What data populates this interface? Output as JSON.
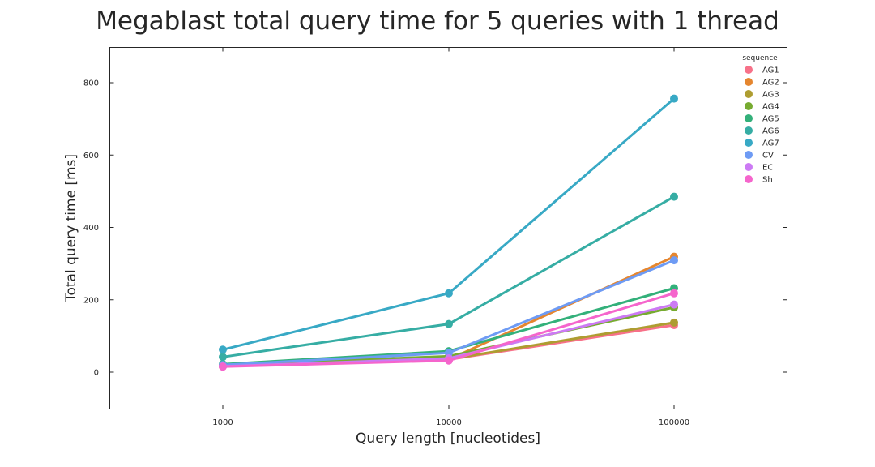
{
  "chart_data": {
    "type": "line",
    "title": "Megablast total query time for 5 queries with 1 thread",
    "xlabel": "Query length [nucleotides]",
    "ylabel": "Total query time [ms]",
    "categories": [
      "1000",
      "10000",
      "100000"
    ],
    "yticks": [
      0,
      200,
      400,
      600,
      800
    ],
    "ylim": [
      -100,
      900
    ],
    "grid": false,
    "legend": {
      "title": "sequence",
      "placement": "top-right"
    },
    "series": [
      {
        "name": "AG1",
        "color": "#f77189",
        "values": [
          18,
          35,
          130
        ]
      },
      {
        "name": "AG2",
        "color": "#e5862f",
        "values": [
          16,
          35,
          319
        ]
      },
      {
        "name": "AG3",
        "color": "#ae9d31",
        "values": [
          17,
          36,
          137
        ]
      },
      {
        "name": "AG4",
        "color": "#77ab31",
        "values": [
          20,
          44,
          179
        ]
      },
      {
        "name": "AG5",
        "color": "#33b07a",
        "values": [
          22,
          58,
          232
        ]
      },
      {
        "name": "AG6",
        "color": "#36ada4",
        "values": [
          42,
          133,
          485
        ]
      },
      {
        "name": "AG7",
        "color": "#38a9c5",
        "values": [
          62,
          218,
          756
        ]
      },
      {
        "name": "CV",
        "color": "#6e9bf4",
        "values": [
          20,
          53,
          309
        ]
      },
      {
        "name": "EC",
        "color": "#cc7af4",
        "values": [
          16,
          38,
          187
        ]
      },
      {
        "name": "Sh",
        "color": "#f565cc",
        "values": [
          15,
          32,
          218
        ]
      }
    ]
  }
}
